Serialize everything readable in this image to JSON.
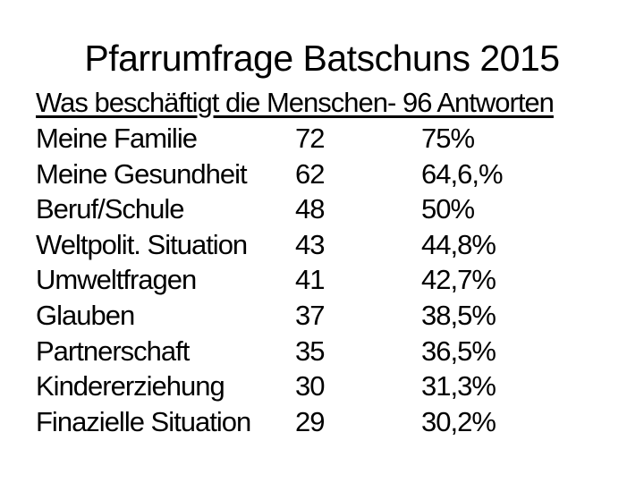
{
  "slide": {
    "title": "Pfarrumfrage Batschuns 2015",
    "table_header": "Was beschäftigt die Menschen- 96 Antworten",
    "total_answers": "96",
    "text_color": "#000000",
    "background_color": "#ffffff",
    "rows": [
      {
        "label": "Meine Familie",
        "count": "72",
        "percent": "75%"
      },
      {
        "label": "Meine Gesundheit",
        "count": "62",
        "percent": "64,6,%"
      },
      {
        "label": "Beruf/Schule",
        "count": "48",
        "percent": "50%"
      },
      {
        "label": "Weltpolit. Situation",
        "count": "43",
        "percent": "44,8%"
      },
      {
        "label": "Umweltfragen",
        "count": "41",
        "percent": "42,7%"
      },
      {
        "label": "Glauben",
        "count": "37",
        "percent": "38,5%"
      },
      {
        "label": "Partnerschaft",
        "count": "35",
        "percent": "36,5%"
      },
      {
        "label": "Kindererziehung",
        "count": "30",
        "percent": "31,3%"
      },
      {
        "label": "Finazielle Situation",
        "count": "29",
        "percent": "30,2%"
      }
    ]
  }
}
